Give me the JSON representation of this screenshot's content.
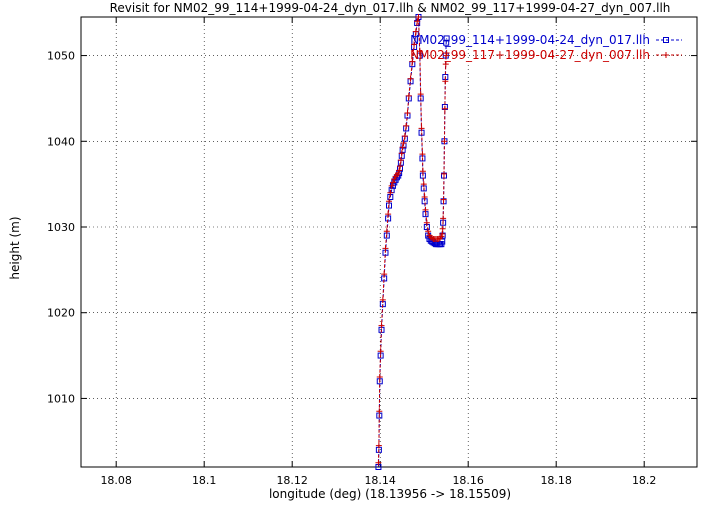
{
  "chart_data": {
    "type": "line",
    "title": "Revisit for NM02_99_114+1999-04-24_dyn_017.llh & NM02_99_117+1999-04-27_dyn_007.llh",
    "xlabel": "longitude (deg) (18.13956 -> 18.15509)",
    "ylabel": "height (m)",
    "xlim": [
      18.072,
      18.212
    ],
    "ylim": [
      1002,
      1054.5
    ],
    "x_ticks": [
      "18.08",
      "18.1",
      "18.12",
      "18.14",
      "18.16",
      "18.18",
      "18.2"
    ],
    "y_ticks": [
      "1010",
      "1020",
      "1030",
      "1040",
      "1050"
    ],
    "grid": true,
    "legend_position": "top-right",
    "series": [
      {
        "name": "NM02_99_114+1999-04-24_dyn_017.llh",
        "color": "#0000cc",
        "marker": "square",
        "x": [
          18.1396,
          18.1397,
          18.1398,
          18.1399,
          18.1401,
          18.1403,
          18.1406,
          18.1409,
          18.1412,
          18.1415,
          18.1418,
          18.142,
          18.1423,
          18.1426,
          18.1429,
          18.1432,
          18.1435,
          18.1438,
          18.1441,
          18.1443,
          18.1445,
          18.1447,
          18.1449,
          18.1451,
          18.1453,
          18.1456,
          18.1459,
          18.1462,
          18.1465,
          18.1469,
          18.1473,
          18.1477,
          18.1481,
          18.1484,
          18.1487,
          18.149,
          18.1492,
          18.1494,
          18.1496,
          18.1497,
          18.1499,
          18.1501,
          18.1503,
          18.1506,
          18.1509,
          18.1512,
          18.1515,
          18.1518,
          18.1521,
          18.1524,
          18.1527,
          18.153,
          18.1533,
          18.1536,
          18.1539,
          18.1541,
          18.1542,
          18.1543,
          18.1544,
          18.1545,
          18.1546,
          18.1547,
          18.1548,
          18.1549,
          18.155,
          18.1551
        ],
        "y": [
          1002.0,
          1004.0,
          1008.0,
          1012.0,
          1015.0,
          1018.0,
          1021.0,
          1024.0,
          1027.0,
          1029.0,
          1031.0,
          1032.5,
          1033.5,
          1034.3,
          1034.8,
          1035.2,
          1035.5,
          1035.8,
          1036.0,
          1036.3,
          1036.8,
          1037.5,
          1038.3,
          1039.0,
          1039.5,
          1040.3,
          1041.5,
          1043.0,
          1045.0,
          1047.0,
          1049.0,
          1051.0,
          1052.5,
          1053.8,
          1054.5,
          1050.0,
          1045.0,
          1041.0,
          1038.0,
          1036.0,
          1034.5,
          1033.0,
          1031.5,
          1030.0,
          1029.0,
          1028.6,
          1028.4,
          1028.3,
          1028.2,
          1028.1,
          1028.0,
          1028.0,
          1028.0,
          1028.0,
          1028.0,
          1028.3,
          1029.0,
          1030.5,
          1033.0,
          1036.0,
          1040.0,
          1044.0,
          1047.5,
          1050.0,
          1051.5,
          1052.0
        ]
      },
      {
        "name": "NM02_99_117+1999-04-27_dyn_007.llh",
        "color": "#cc0000",
        "marker": "plus",
        "x": [
          18.1396,
          18.1397,
          18.1398,
          18.1399,
          18.1401,
          18.1403,
          18.1406,
          18.1409,
          18.1412,
          18.1415,
          18.1418,
          18.142,
          18.1423,
          18.1426,
          18.1429,
          18.1432,
          18.1435,
          18.1438,
          18.1441,
          18.1443,
          18.1445,
          18.1447,
          18.1449,
          18.1451,
          18.1453,
          18.1456,
          18.1459,
          18.1462,
          18.1465,
          18.1469,
          18.1473,
          18.1477,
          18.1481,
          18.1484,
          18.1487,
          18.149,
          18.1492,
          18.1494,
          18.1496,
          18.1497,
          18.1499,
          18.1501,
          18.1503,
          18.1506,
          18.1509,
          18.1512,
          18.1515,
          18.1518,
          18.1521,
          18.1524,
          18.1527,
          18.153,
          18.1533,
          18.1536,
          18.1539,
          18.1541,
          18.1542,
          18.1543,
          18.1544,
          18.1545,
          18.1546,
          18.1547,
          18.1548,
          18.1549,
          18.155,
          18.1551
        ],
        "y": [
          1002.5,
          1004.5,
          1008.5,
          1012.5,
          1015.5,
          1018.5,
          1021.5,
          1024.5,
          1027.5,
          1029.5,
          1031.5,
          1033.0,
          1034.0,
          1034.8,
          1035.2,
          1035.6,
          1035.9,
          1036.1,
          1036.3,
          1036.6,
          1037.1,
          1037.8,
          1038.6,
          1039.3,
          1039.8,
          1040.6,
          1041.8,
          1043.3,
          1045.3,
          1047.3,
          1049.3,
          1051.3,
          1052.8,
          1054.0,
          1054.5,
          1050.5,
          1045.5,
          1041.5,
          1038.5,
          1036.5,
          1035.0,
          1033.5,
          1032.0,
          1030.5,
          1029.5,
          1029.0,
          1028.8,
          1028.7,
          1028.6,
          1028.6,
          1028.6,
          1028.6,
          1028.6,
          1028.7,
          1028.9,
          1029.2,
          1029.8,
          1031.0,
          1033.2,
          1036.2,
          1040.0,
          1043.8,
          1047.0,
          1049.0,
          1050.0,
          1050.3
        ]
      }
    ]
  }
}
